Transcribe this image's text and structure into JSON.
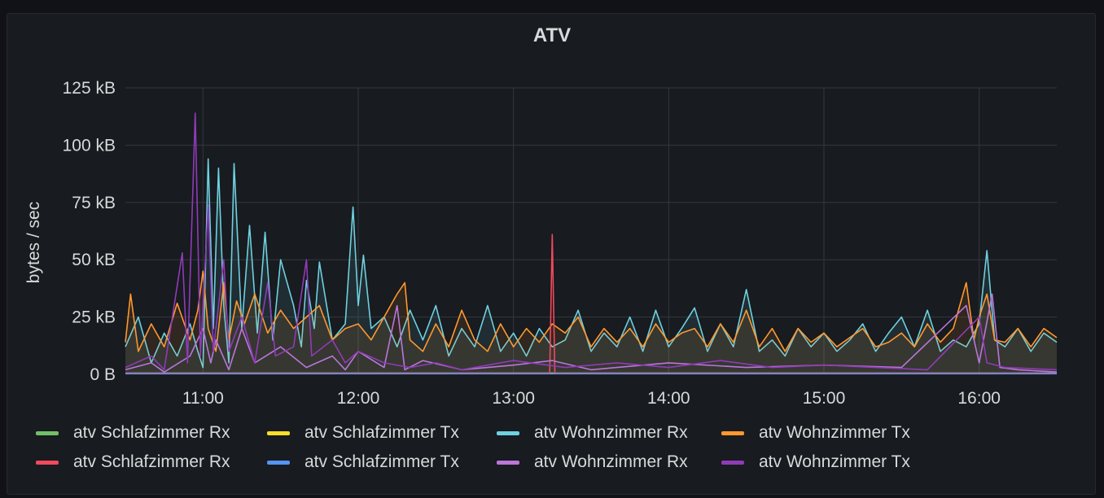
{
  "chart_data": {
    "type": "line",
    "title": "ATV",
    "ylabel": "bytes / sec",
    "xlabel": "",
    "y_ticks": [
      "0 B",
      "25 kB",
      "50 kB",
      "75 kB",
      "100 kB",
      "125 kB"
    ],
    "ylim": [
      0,
      125
    ],
    "y_unit": "kB",
    "x_ticks": [
      "11:00",
      "12:00",
      "13:00",
      "14:00",
      "15:00",
      "16:00"
    ],
    "xlim": [
      "10:30",
      "16:30"
    ],
    "grid": true,
    "legend_position": "bottom",
    "series": [
      {
        "name": "atv Schlafzimmer Rx",
        "color": "#73bf69",
        "fill": false,
        "points": [
          [
            "10:30",
            0.3
          ],
          [
            "13:00",
            0.3
          ],
          [
            "16:30",
            0.3
          ]
        ]
      },
      {
        "name": "atv Schlafzimmer Tx",
        "color": "#fade2a",
        "fill": false,
        "points": [
          [
            "10:30",
            0.5
          ],
          [
            "13:00",
            0.5
          ],
          [
            "16:30",
            0.5
          ]
        ]
      },
      {
        "name": "atv Wohnzimmer Rx",
        "color": "#6ed0e0",
        "fill": true,
        "points": [
          [
            "10:30",
            12
          ],
          [
            "10:35",
            25
          ],
          [
            "10:40",
            5
          ],
          [
            "10:45",
            18
          ],
          [
            "10:50",
            8
          ],
          [
            "10:55",
            22
          ],
          [
            "10:58",
            10
          ],
          [
            "11:00",
            3
          ],
          [
            "11:02",
            94
          ],
          [
            "11:04",
            20
          ],
          [
            "11:06",
            90
          ],
          [
            "11:08",
            30
          ],
          [
            "11:10",
            5
          ],
          [
            "11:12",
            92
          ],
          [
            "11:15",
            20
          ],
          [
            "11:18",
            65
          ],
          [
            "11:21",
            18
          ],
          [
            "11:24",
            62
          ],
          [
            "11:27",
            15
          ],
          [
            "11:30",
            50
          ],
          [
            "11:35",
            30
          ],
          [
            "11:38",
            12
          ],
          [
            "11:40",
            41
          ],
          [
            "11:43",
            20
          ],
          [
            "11:45",
            49
          ],
          [
            "11:50",
            15
          ],
          [
            "11:55",
            22
          ],
          [
            "11:58",
            73
          ],
          [
            "12:00",
            30
          ],
          [
            "12:02",
            52
          ],
          [
            "12:05",
            20
          ],
          [
            "12:10",
            25
          ],
          [
            "12:15",
            12
          ],
          [
            "12:20",
            28
          ],
          [
            "12:25",
            15
          ],
          [
            "12:30",
            30
          ],
          [
            "12:35",
            8
          ],
          [
            "12:40",
            20
          ],
          [
            "12:45",
            12
          ],
          [
            "12:50",
            30
          ],
          [
            "12:55",
            10
          ],
          [
            "13:00",
            18
          ],
          [
            "13:05",
            8
          ],
          [
            "13:10",
            20
          ],
          [
            "13:15",
            12
          ],
          [
            "13:20",
            15
          ],
          [
            "13:25",
            28
          ],
          [
            "13:30",
            10
          ],
          [
            "13:35",
            18
          ],
          [
            "13:40",
            12
          ],
          [
            "13:45",
            25
          ],
          [
            "13:50",
            10
          ],
          [
            "13:55",
            28
          ],
          [
            "14:00",
            12
          ],
          [
            "14:05",
            20
          ],
          [
            "14:10",
            29
          ],
          [
            "14:15",
            10
          ],
          [
            "14:20",
            22
          ],
          [
            "14:25",
            12
          ],
          [
            "14:30",
            37
          ],
          [
            "14:35",
            10
          ],
          [
            "14:40",
            15
          ],
          [
            "14:45",
            8
          ],
          [
            "14:50",
            20
          ],
          [
            "14:55",
            12
          ],
          [
            "15:00",
            18
          ],
          [
            "15:05",
            10
          ],
          [
            "15:10",
            15
          ],
          [
            "15:15",
            22
          ],
          [
            "15:20",
            10
          ],
          [
            "15:25",
            18
          ],
          [
            "15:30",
            25
          ],
          [
            "15:35",
            12
          ],
          [
            "15:40",
            28
          ],
          [
            "15:45",
            10
          ],
          [
            "15:50",
            15
          ],
          [
            "15:55",
            12
          ],
          [
            "16:00",
            22
          ],
          [
            "16:03",
            54
          ],
          [
            "16:06",
            15
          ],
          [
            "16:10",
            12
          ],
          [
            "16:15",
            20
          ],
          [
            "16:20",
            10
          ],
          [
            "16:25",
            18
          ],
          [
            "16:30",
            14
          ]
        ]
      },
      {
        "name": "atv Wohnzimmer Tx",
        "color": "#ff9830",
        "fill": true,
        "points": [
          [
            "10:30",
            14
          ],
          [
            "10:32",
            35
          ],
          [
            "10:35",
            10
          ],
          [
            "10:40",
            22
          ],
          [
            "10:45",
            12
          ],
          [
            "10:50",
            31
          ],
          [
            "10:55",
            15
          ],
          [
            "10:58",
            28
          ],
          [
            "11:00",
            45
          ],
          [
            "11:02",
            20
          ],
          [
            "11:05",
            10
          ],
          [
            "11:08",
            40
          ],
          [
            "11:10",
            15
          ],
          [
            "11:13",
            32
          ],
          [
            "11:16",
            22
          ],
          [
            "11:20",
            35
          ],
          [
            "11:25",
            18
          ],
          [
            "11:30",
            28
          ],
          [
            "11:35",
            20
          ],
          [
            "11:40",
            25
          ],
          [
            "11:45",
            30
          ],
          [
            "11:50",
            15
          ],
          [
            "11:55",
            20
          ],
          [
            "12:00",
            22
          ],
          [
            "12:05",
            15
          ],
          [
            "12:10",
            25
          ],
          [
            "12:15",
            35
          ],
          [
            "12:18",
            40
          ],
          [
            "12:20",
            15
          ],
          [
            "12:25",
            10
          ],
          [
            "12:30",
            22
          ],
          [
            "12:35",
            12
          ],
          [
            "12:40",
            28
          ],
          [
            "12:45",
            15
          ],
          [
            "12:50",
            10
          ],
          [
            "12:55",
            22
          ],
          [
            "13:00",
            12
          ],
          [
            "13:05",
            20
          ],
          [
            "13:10",
            14
          ],
          [
            "13:15",
            22
          ],
          [
            "13:20",
            18
          ],
          [
            "13:25",
            25
          ],
          [
            "13:30",
            12
          ],
          [
            "13:35",
            20
          ],
          [
            "13:40",
            14
          ],
          [
            "13:45",
            20
          ],
          [
            "13:50",
            12
          ],
          [
            "13:55",
            22
          ],
          [
            "14:00",
            14
          ],
          [
            "14:05",
            18
          ],
          [
            "14:10",
            20
          ],
          [
            "14:15",
            12
          ],
          [
            "14:20",
            22
          ],
          [
            "14:25",
            14
          ],
          [
            "14:30",
            28
          ],
          [
            "14:35",
            12
          ],
          [
            "14:40",
            20
          ],
          [
            "14:45",
            10
          ],
          [
            "14:50",
            20
          ],
          [
            "14:55",
            14
          ],
          [
            "15:00",
            18
          ],
          [
            "15:05",
            12
          ],
          [
            "15:10",
            16
          ],
          [
            "15:15",
            20
          ],
          [
            "15:20",
            12
          ],
          [
            "15:25",
            14
          ],
          [
            "15:30",
            18
          ],
          [
            "15:35",
            12
          ],
          [
            "15:40",
            22
          ],
          [
            "15:45",
            14
          ],
          [
            "15:50",
            20
          ],
          [
            "15:55",
            40
          ],
          [
            "15:58",
            15
          ],
          [
            "16:00",
            25
          ],
          [
            "16:03",
            35
          ],
          [
            "16:06",
            15
          ],
          [
            "16:10",
            14
          ],
          [
            "16:15",
            20
          ],
          [
            "16:20",
            12
          ],
          [
            "16:25",
            20
          ],
          [
            "16:30",
            16
          ]
        ]
      },
      {
        "name": "atv Schlafzimmer Rx",
        "color": "#f2495c",
        "fill": false,
        "points": [
          [
            "10:30",
            0.5
          ],
          [
            "13:14",
            0.5
          ],
          [
            "13:15",
            61
          ],
          [
            "13:16",
            0.5
          ],
          [
            "16:30",
            0.5
          ]
        ]
      },
      {
        "name": "atv Schlafzimmer Tx",
        "color": "#5794f2",
        "fill": false,
        "points": [
          [
            "10:30",
            0.3
          ],
          [
            "16:30",
            0.3
          ]
        ]
      },
      {
        "name": "atv Wohnzimmer Rx",
        "color": "#b877d9",
        "fill": false,
        "points": [
          [
            "10:30",
            2
          ],
          [
            "10:40",
            5
          ],
          [
            "10:45",
            1
          ],
          [
            "10:55",
            8
          ],
          [
            "11:00",
            20
          ],
          [
            "11:03",
            5
          ],
          [
            "11:05",
            15
          ],
          [
            "11:10",
            2
          ],
          [
            "11:15",
            20
          ],
          [
            "11:20",
            5
          ],
          [
            "11:30",
            12
          ],
          [
            "11:40",
            3
          ],
          [
            "11:50",
            8
          ],
          [
            "11:55",
            2
          ],
          [
            "12:00",
            10
          ],
          [
            "12:10",
            3
          ],
          [
            "12:15",
            30
          ],
          [
            "12:18",
            2
          ],
          [
            "12:25",
            6
          ],
          [
            "12:40",
            2
          ],
          [
            "13:00",
            4
          ],
          [
            "13:15",
            6
          ],
          [
            "13:30",
            2
          ],
          [
            "14:00",
            5
          ],
          [
            "14:30",
            3
          ],
          [
            "15:00",
            4
          ],
          [
            "15:30",
            3
          ],
          [
            "15:55",
            30
          ],
          [
            "16:00",
            5
          ],
          [
            "16:05",
            35
          ],
          [
            "16:08",
            3
          ],
          [
            "16:15",
            2
          ],
          [
            "16:30",
            1
          ]
        ]
      },
      {
        "name": "atv Wohnzimmer Tx",
        "color": "#8f3bb8",
        "fill": false,
        "points": [
          [
            "10:30",
            3
          ],
          [
            "10:40",
            8
          ],
          [
            "10:45",
            2
          ],
          [
            "10:52",
            53
          ],
          [
            "10:54",
            5
          ],
          [
            "10:57",
            114
          ],
          [
            "10:59",
            8
          ],
          [
            "11:02",
            74
          ],
          [
            "11:04",
            10
          ],
          [
            "11:08",
            50
          ],
          [
            "11:10",
            10
          ],
          [
            "11:15",
            25
          ],
          [
            "11:20",
            5
          ],
          [
            "11:25",
            40
          ],
          [
            "11:28",
            8
          ],
          [
            "11:35",
            12
          ],
          [
            "11:40",
            50
          ],
          [
            "11:42",
            8
          ],
          [
            "11:50",
            15
          ],
          [
            "11:55",
            5
          ],
          [
            "12:00",
            10
          ],
          [
            "12:10",
            5
          ],
          [
            "12:20",
            3
          ],
          [
            "12:30",
            5
          ],
          [
            "12:40",
            2
          ],
          [
            "13:00",
            6
          ],
          [
            "13:20",
            3
          ],
          [
            "13:40",
            5
          ],
          [
            "14:00",
            3
          ],
          [
            "14:20",
            6
          ],
          [
            "14:40",
            3
          ],
          [
            "15:00",
            4
          ],
          [
            "15:20",
            3
          ],
          [
            "15:40",
            2
          ],
          [
            "16:00",
            25
          ],
          [
            "16:03",
            5
          ],
          [
            "16:10",
            3
          ],
          [
            "16:30",
            2
          ]
        ]
      }
    ]
  }
}
